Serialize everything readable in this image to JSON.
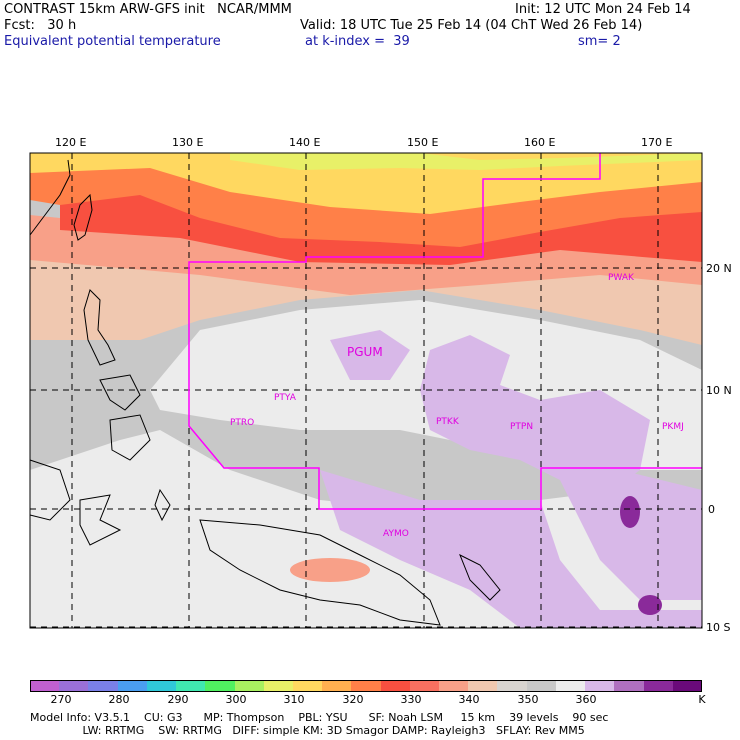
{
  "header": {
    "line1_left": "CONTRAST 15km ARW-GFS init   NCAR/MMM",
    "line1_right": "Init: 12 UTC Mon 24 Feb 14",
    "line2_left": "Fcst:   30 h",
    "line2_right": "Valid: 18 UTC Tue 25 Feb 14 (04 ChT Wed 26 Feb 14)",
    "line3_left": "Equivalent potential temperature",
    "line3_mid": "at k-index =  39",
    "line3_right": "sm= 2"
  },
  "map": {
    "lon_labels": [
      "120 E",
      "130 E",
      "140 E",
      "150 E",
      "160 E",
      "170 E"
    ],
    "lat_labels": [
      "20 N",
      "10 N",
      "0",
      "10 S"
    ],
    "stations": [
      "PWAK",
      "PGUM",
      "PTYA",
      "PTRO",
      "PTKK",
      "PTPN",
      "PKMJ",
      "AYMO"
    ],
    "station_color": "#e000e0",
    "boundary_color": "#ff00ff"
  },
  "colorbar": {
    "labels": [
      "270",
      "280",
      "290",
      "300",
      "310",
      "320",
      "330",
      "340",
      "350",
      "360",
      "K"
    ],
    "colors": [
      "#c060d0",
      "#9a70d8",
      "#7a80e8",
      "#4a9ef0",
      "#30c8d8",
      "#40e8b0",
      "#50f060",
      "#a8f060",
      "#e8f068",
      "#ffd860",
      "#ffb050",
      "#ff8048",
      "#f85040",
      "#f87060",
      "#f8a088",
      "#f0c8b0",
      "#d8d4d0",
      "#c8c8c8",
      "#ececec",
      "#d8b8e8",
      "#b070c0",
      "#8a2a9a",
      "#6a0a7a"
    ]
  },
  "model_info": {
    "line1": "Model Info: V3.5.1    CU: G3      MP: Thompson    PBL: YSU      SF: Noah LSM     15 km    39 levels    90 sec",
    "line2": "               LW: RRTMG    SW: RRTMG   DIFF: simple KM: 3D Smagor DAMP: Rayleigh3   SFLAY: Rev MM5"
  }
}
